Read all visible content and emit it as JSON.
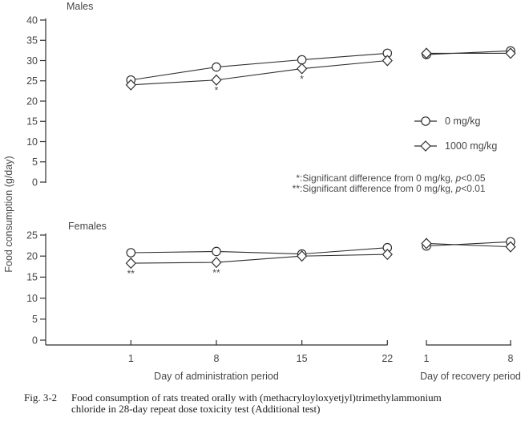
{
  "colors": {
    "axis": "#2e2e2e",
    "line": "#2e2e2e",
    "marker_fill": "#ffffff",
    "text": "#464646",
    "background": "#ffffff"
  },
  "labels": {
    "y_axis": "Food consumption (g/day)",
    "x_administration": "Day of administration period",
    "x_recovery": "Day of recovery period"
  },
  "legend": [
    {
      "marker": "circle",
      "label": "0 mg/kg"
    },
    {
      "marker": "diamond",
      "label": "1000 mg/kg"
    }
  ],
  "notes": [
    {
      "stars": "*",
      "prefix": ":Significant difference from 0 mg/kg, ",
      "p": "p",
      "threshold": "<0.05"
    },
    {
      "stars": "**",
      "prefix": ":Significant difference from 0 mg/kg, ",
      "p": "p",
      "threshold": "<0.01"
    }
  ],
  "caption": {
    "fig": "Fig. 3-2",
    "line1": "Food consumption of rats treated orally with (methacryloyloxyetjyl)trimethylammonium",
    "line2": "chloride in 28-day repeat dose toxicity test (Additional test)"
  },
  "chart_data": [
    {
      "type": "line",
      "panel": "Males",
      "ylabel": "Food consumption (g/day)",
      "ylim": [
        0,
        40
      ],
      "yticks": [
        0,
        5,
        10,
        15,
        20,
        25,
        30,
        35,
        40
      ],
      "x_administration": [
        1,
        8,
        15,
        22
      ],
      "x_recovery": [
        1,
        8
      ],
      "series": [
        {
          "name": "0 mg/kg",
          "marker": "circle",
          "administration": [
            25.2,
            28.4,
            30.2,
            31.8
          ],
          "recovery": [
            31.5,
            32.4
          ]
        },
        {
          "name": "1000 mg/kg",
          "marker": "diamond",
          "administration": [
            24.0,
            25.2,
            28.0,
            30.0
          ],
          "recovery": [
            31.8,
            31.8
          ]
        }
      ],
      "significance": [
        {
          "series": "1000 mg/kg",
          "period": "administration",
          "day": 8,
          "mark": "*"
        },
        {
          "series": "1000 mg/kg",
          "period": "administration",
          "day": 15,
          "mark": "*"
        }
      ]
    },
    {
      "type": "line",
      "panel": "Females",
      "ylabel": "Food consumption (g/day)",
      "ylim": [
        0,
        25
      ],
      "yticks": [
        0,
        5,
        10,
        15,
        20,
        25
      ],
      "x_administration": [
        1,
        8,
        15,
        22
      ],
      "x_recovery": [
        1,
        8
      ],
      "series": [
        {
          "name": "0 mg/kg",
          "marker": "circle",
          "administration": [
            20.8,
            21.1,
            20.5,
            22.0
          ],
          "recovery": [
            22.4,
            23.4
          ]
        },
        {
          "name": "1000 mg/kg",
          "marker": "diamond",
          "administration": [
            18.3,
            18.5,
            20.0,
            20.4
          ],
          "recovery": [
            23.0,
            22.2
          ]
        }
      ],
      "significance": [
        {
          "series": "1000 mg/kg",
          "period": "administration",
          "day": 1,
          "mark": "**"
        },
        {
          "series": "1000 mg/kg",
          "period": "administration",
          "day": 8,
          "mark": "**"
        }
      ]
    }
  ]
}
